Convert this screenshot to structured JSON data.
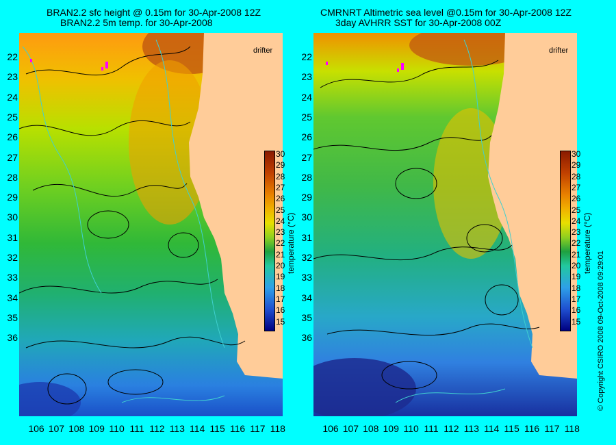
{
  "left_panel": {
    "title_line1": "BRAN2.2 sfc height @ 0.15m for 30-Apr-2008 12Z",
    "title_line2": "BRAN2.2 5m temp. for 30-Apr-2008",
    "drifter_label": "drifter"
  },
  "right_panel": {
    "title_line1": "CMRNRT Altimetric sea level  @0.15m  for 30-Apr-2008 12Z",
    "title_line2": "3day AVHRR SST for 30-Apr-2008 00Z",
    "drifter_label": "drifter"
  },
  "latitude_ticks": [
    "22",
    "23",
    "24",
    "25",
    "26",
    "27",
    "28",
    "29",
    "30",
    "31",
    "32",
    "33",
    "34",
    "35",
    "36"
  ],
  "longitude_ticks": [
    "106",
    "107",
    "108",
    "109",
    "110",
    "111",
    "112",
    "113",
    "114",
    "115",
    "116",
    "117",
    "118"
  ],
  "colorbar": {
    "label": "temperature (°C)",
    "ticks": [
      "30",
      "29",
      "28",
      "27",
      "26",
      "25",
      "24",
      "23",
      "22",
      "21",
      "20",
      "19",
      "18",
      "17",
      "16",
      "15"
    ],
    "colors": [
      "#000080",
      "#2ea0e8",
      "#1ea040",
      "#e8e000",
      "#e88000",
      "#8a1a00"
    ]
  },
  "copyright": "© Copyright CSIRO 2008   09-Oct-2008 09:29:01",
  "colors": {
    "background": "#00ffff",
    "land": "#ffcc99"
  }
}
